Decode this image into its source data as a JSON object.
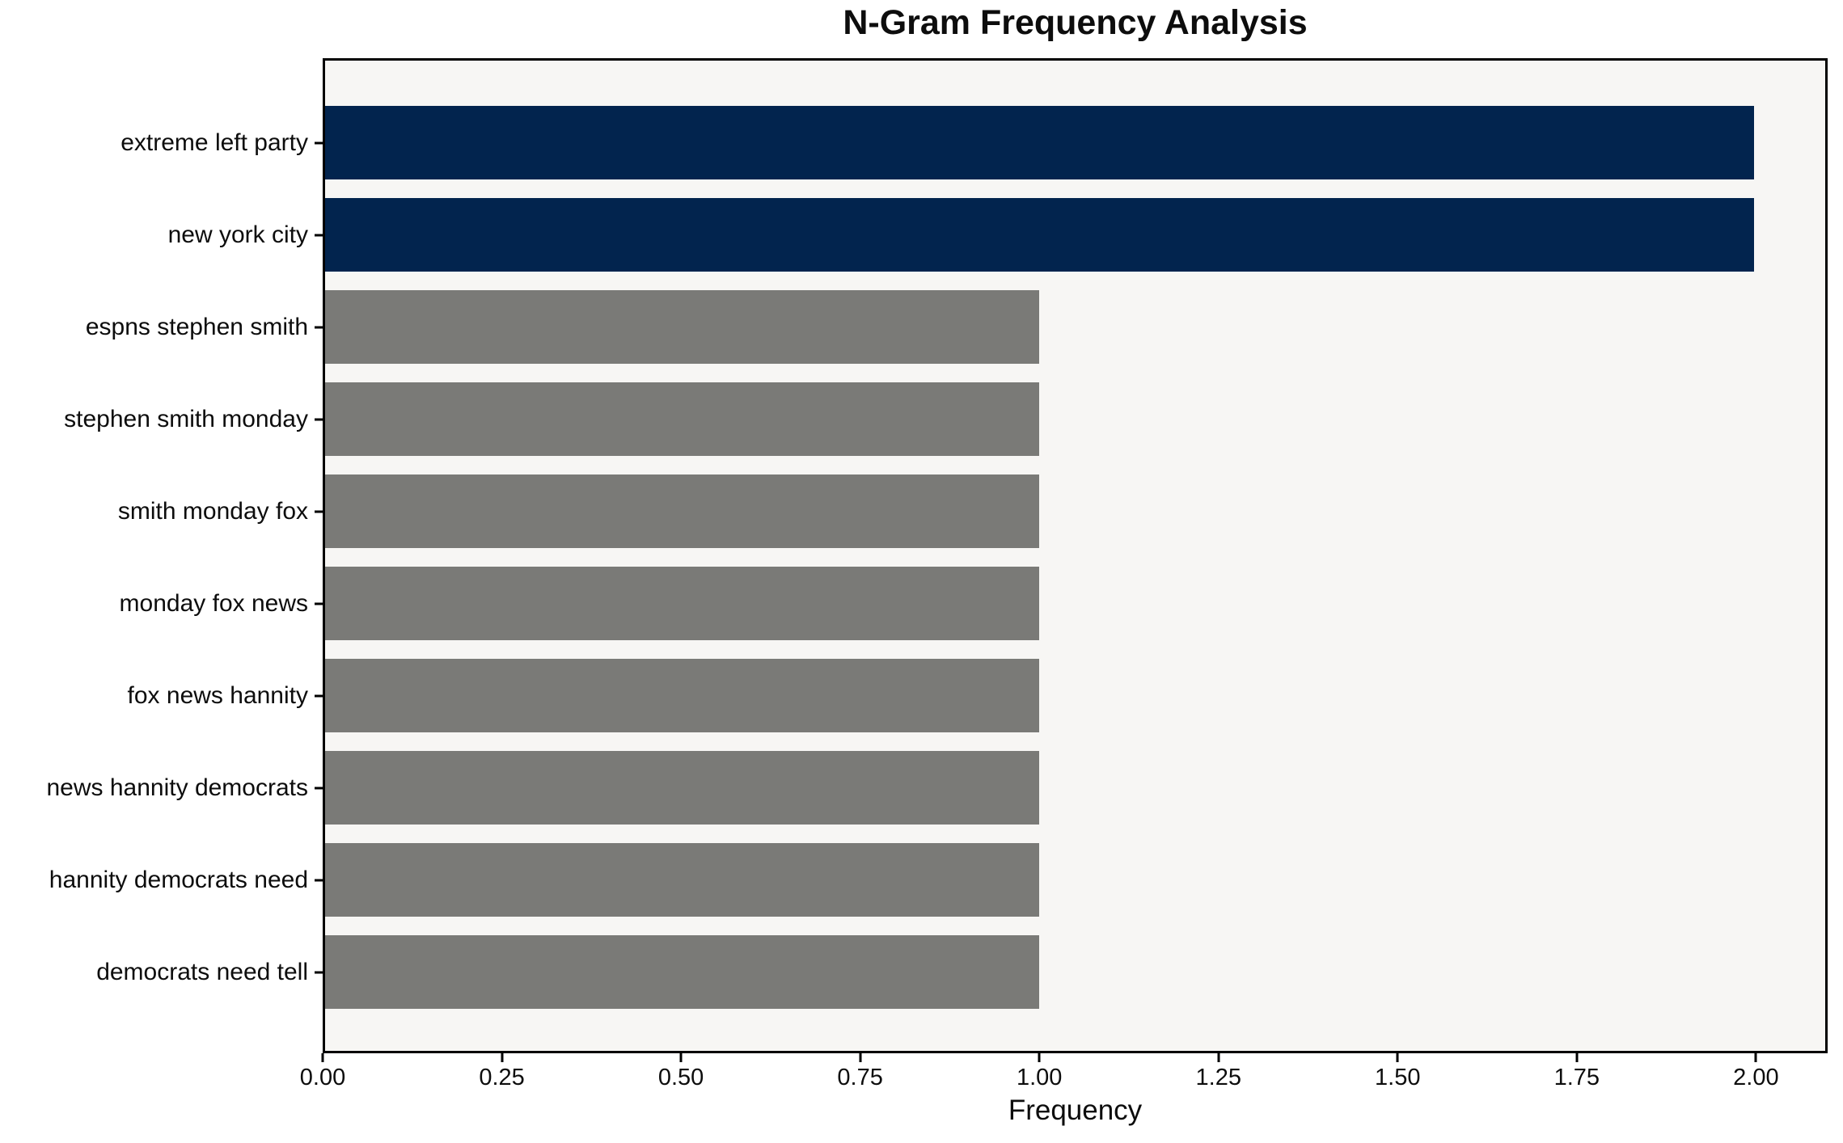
{
  "chart_data": {
    "type": "bar",
    "orientation": "horizontal",
    "title": "N-Gram Frequency Analysis",
    "xlabel": "Frequency",
    "ylabel": "",
    "categories": [
      "extreme left party",
      "new york city",
      "espns stephen smith",
      "stephen smith monday",
      "smith monday fox",
      "monday fox news",
      "fox news hannity",
      "news hannity democrats",
      "hannity democrats need",
      "democrats need tell"
    ],
    "values": [
      2,
      2,
      1,
      1,
      1,
      1,
      1,
      1,
      1,
      1
    ],
    "bar_colors": [
      "#02244e",
      "#02244e",
      "#7a7a77",
      "#7a7a77",
      "#7a7a77",
      "#7a7a77",
      "#7a7a77",
      "#7a7a77",
      "#7a7a77",
      "#7a7a77"
    ],
    "xlim": [
      0,
      2.1
    ],
    "xticks": [
      "0.00",
      "0.25",
      "0.50",
      "0.75",
      "1.00",
      "1.25",
      "1.50",
      "1.75",
      "2.00"
    ],
    "xtick_values": [
      0,
      0.25,
      0.5,
      0.75,
      1.0,
      1.25,
      1.5,
      1.75,
      2.0
    ],
    "grid": false,
    "legend": null,
    "colors": {
      "highlight_bar": "#02244e",
      "default_bar": "#7a7a77",
      "plot_background": "#f7f6f4",
      "figure_background": "#ffffff",
      "spine": "#000000",
      "text": "#0d0d0d"
    }
  }
}
